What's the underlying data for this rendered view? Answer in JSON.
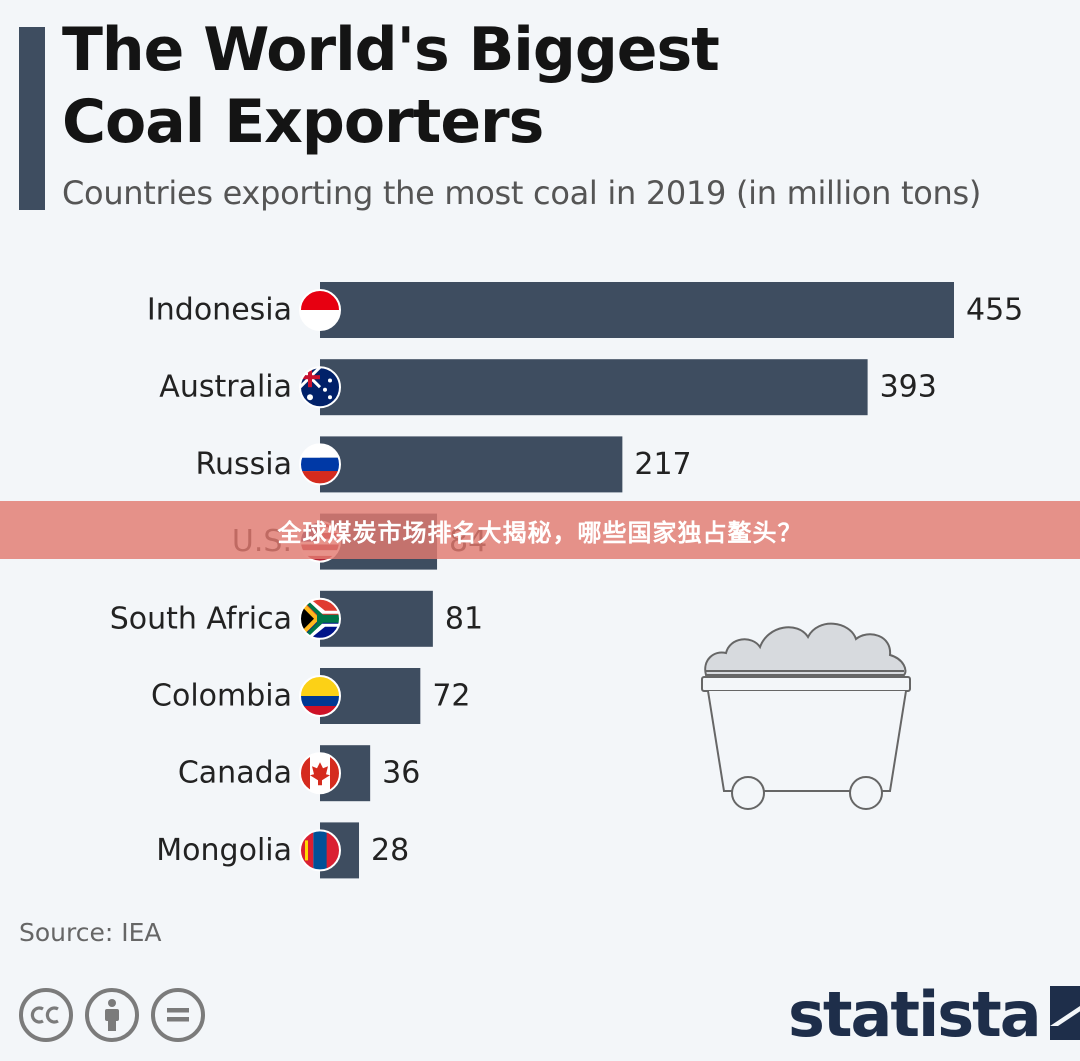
{
  "header": {
    "title_line1": "The World's Biggest",
    "title_line2": "Coal Exporters",
    "subtitle": "Countries exporting the most coal in 2019 (in million tons)"
  },
  "chart_data": {
    "type": "bar",
    "orientation": "horizontal",
    "title": "The World's Biggest Coal Exporters",
    "subtitle": "Countries exporting the most coal in 2019 (in million tons)",
    "categories": [
      "Indonesia",
      "Australia",
      "Russia",
      "U.S.",
      "South Africa",
      "Colombia",
      "Canada",
      "Mongolia"
    ],
    "values": [
      455,
      393,
      217,
      84,
      81,
      72,
      36,
      28
    ],
    "bar_color": "#3e4d60",
    "flags": [
      "indonesia-flag-icon",
      "australia-flag-icon",
      "russia-flag-icon",
      "us-flag-icon",
      "south-africa-flag-icon",
      "colombia-flag-icon",
      "canada-flag-icon",
      "mongolia-flag-icon"
    ]
  },
  "footer": {
    "source": "Source: IEA",
    "brand": "statista",
    "license_icons": [
      "cc-icon",
      "attribution-icon",
      "no-derivatives-icon"
    ]
  },
  "overlay": {
    "banner_text": "全球煤炭市场排名大揭秘，哪些国家独占鳌头？"
  },
  "colors": {
    "background": "#f3f6f9",
    "bar": "#3e4d60",
    "banner": "#e27a70"
  }
}
